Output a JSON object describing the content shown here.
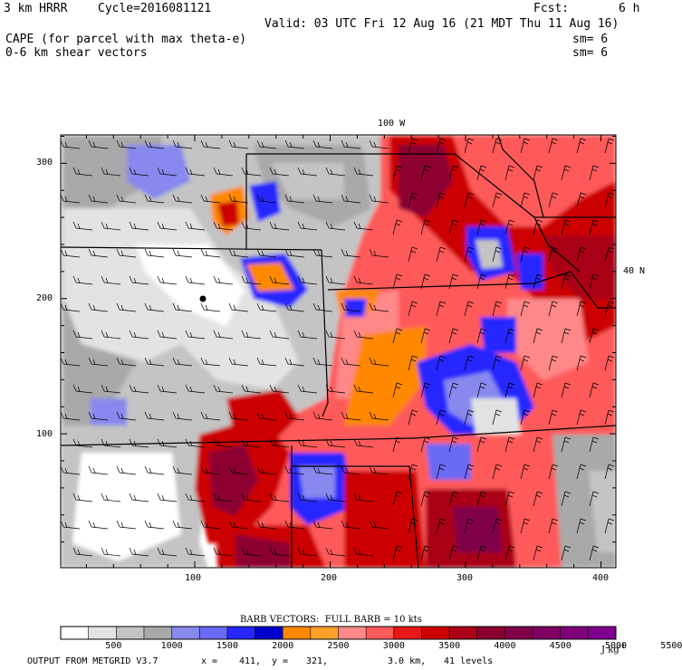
{
  "header": {
    "model": "3 km HRRR",
    "cycle": "Cycle=2016081121",
    "fcst_label": "Fcst:",
    "fcst_value": "6 h",
    "valid": "Valid: 03 UTC Fri 12 Aug 16 (21 MDT Thu 11 Aug 16)",
    "field1": "CAPE (for parcel with max theta-e)",
    "field1_sm": "sm= 6",
    "field2": "0-6 km shear vectors",
    "field2_sm": "sm= 6"
  },
  "map": {
    "top_label": "100 W",
    "right_label": "40 N",
    "x_ticks": [
      "100",
      "200",
      "300",
      "400"
    ],
    "y_ticks": [
      "300",
      "200",
      "100"
    ],
    "x_range": [
      1,
      411
    ],
    "y_range": [
      1,
      321
    ],
    "station_marker": {
      "x": 105,
      "y": 199
    }
  },
  "colorbar": {
    "barb_title": "BARB VECTORS:  FULL BARB = 10 kts",
    "levels": [
      "500",
      "1000",
      "1500",
      "2000",
      "2500",
      "3000",
      "3500",
      "4000",
      "4500",
      "5000",
      "5500"
    ],
    "units": "J kg",
    "units_exp": "-1",
    "colors": [
      "#ffffff",
      "#e3e3e3",
      "#c4c4c4",
      "#a9a9a9",
      "#8888ee",
      "#6a6af4",
      "#2626ff",
      "#0000cc",
      "#ff8800",
      "#ffa028",
      "#ff8888",
      "#ff5a5a",
      "#e81818",
      "#cc0000",
      "#aa0018",
      "#8c0030",
      "#800048",
      "#800062",
      "#80007a",
      "#800090"
    ]
  },
  "footer": {
    "source": "OUTPUT FROM METGRID V3.7",
    "x_label": "x =",
    "x_value": "411,",
    "y_label": "y =",
    "y_value": "321,",
    "res": "3.0 km,",
    "levels": "41 levels"
  }
}
